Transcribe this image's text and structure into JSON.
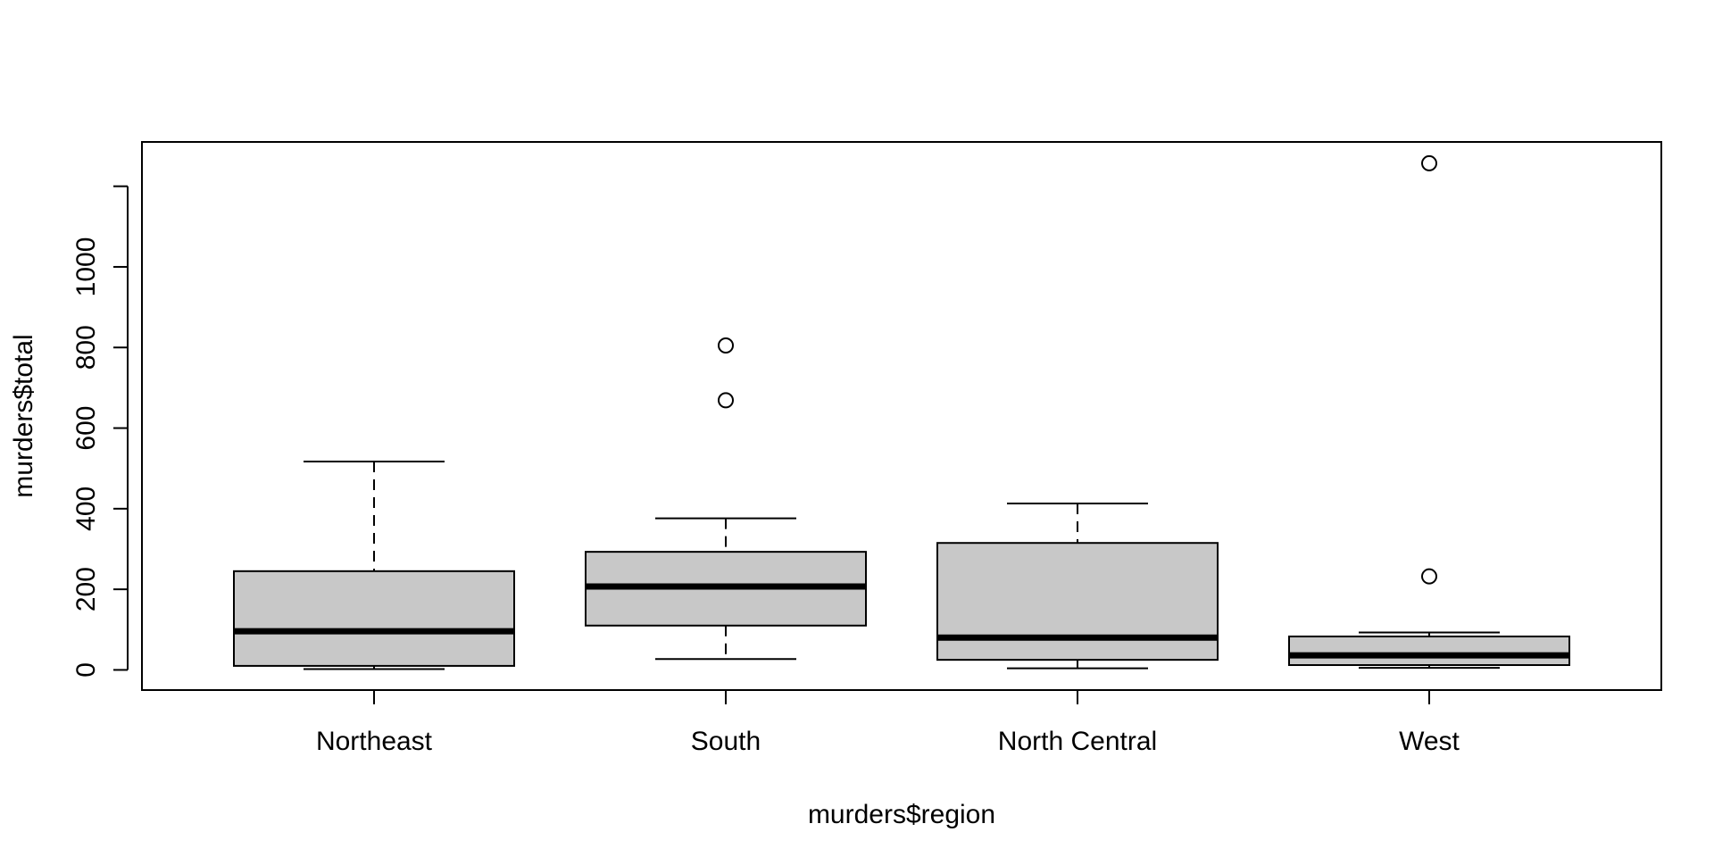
{
  "chart_data": {
    "type": "boxplot",
    "title": "",
    "xlabel": "murders$region",
    "ylabel": "murders$total",
    "categories": [
      "Northeast",
      "South",
      "North Central",
      "West"
    ],
    "boxes": [
      {
        "category": "Northeast",
        "whisker_low": 2,
        "q1": 10,
        "median": 96,
        "q3": 245,
        "whisker_high": 517,
        "outliers": []
      },
      {
        "category": "South",
        "whisker_low": 27,
        "q1": 110,
        "median": 207,
        "q3": 293,
        "whisker_high": 376,
        "outliers": [
          669,
          805
        ]
      },
      {
        "category": "North Central",
        "whisker_low": 4,
        "q1": 25,
        "median": 80,
        "q3": 315,
        "whisker_high": 413,
        "outliers": []
      },
      {
        "category": "West",
        "whisker_low": 5,
        "q1": 12,
        "median": 36,
        "q3": 83,
        "whisker_high": 93,
        "outliers": [
          232,
          1257
        ]
      }
    ],
    "y_ticks": [
      0,
      200,
      400,
      600,
      800,
      1000,
      1200
    ],
    "y_tick_labels": [
      "0",
      "200",
      "400",
      "600",
      "800",
      "1000",
      ""
    ],
    "ylim": [
      -50,
      1310
    ],
    "box_fill": "#c8c8c8",
    "line_color": "#000000",
    "grid": false,
    "legend": "none"
  }
}
